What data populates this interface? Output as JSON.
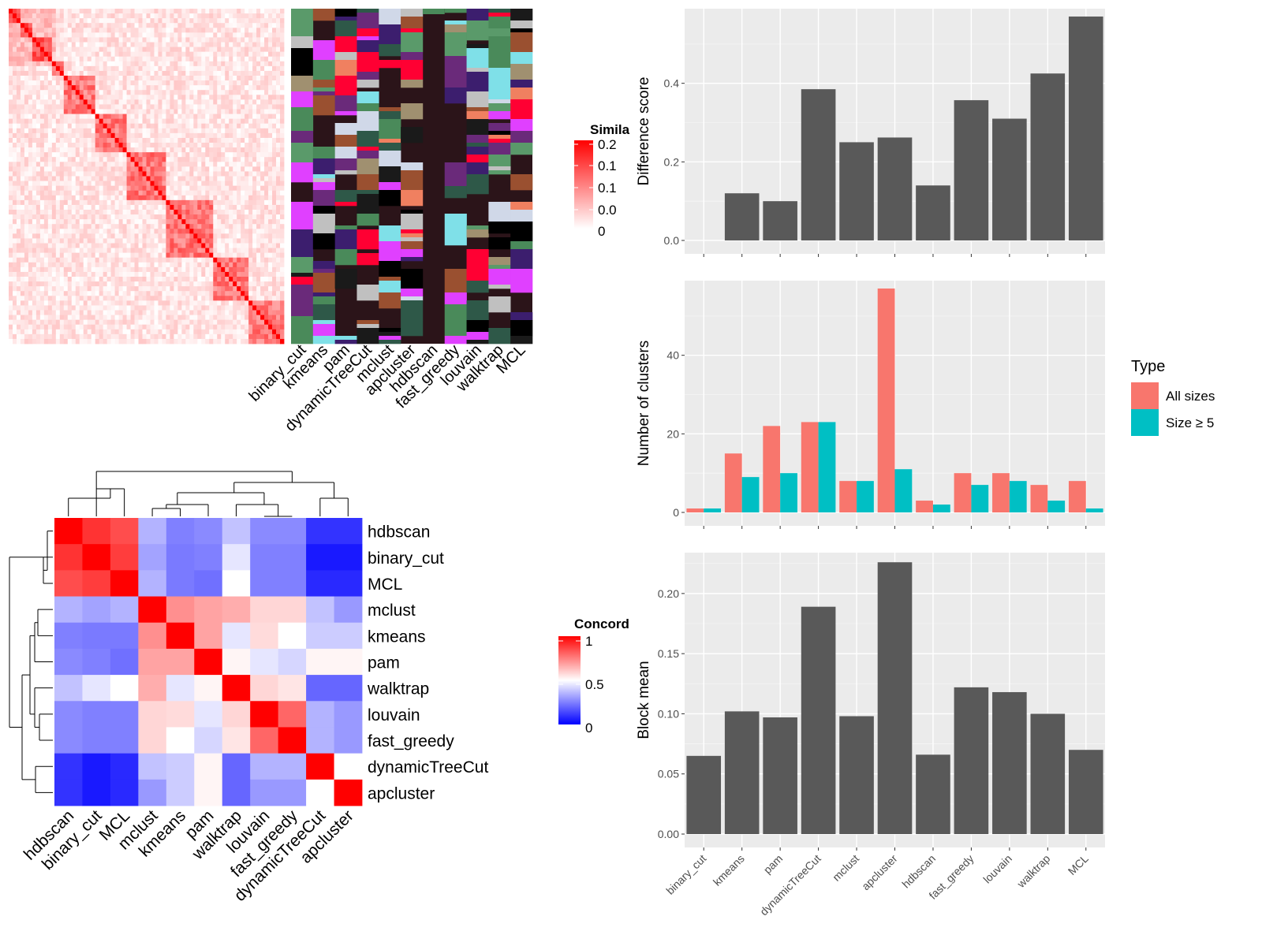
{
  "methods_order": [
    "binary_cut",
    "kmeans",
    "pam",
    "dynamicTreeCut",
    "mclust",
    "apcluster",
    "hdbscan",
    "fast_greedy",
    "louvain",
    "walktrap",
    "MCL"
  ],
  "colors": {
    "panel_bg": "#ebebeb",
    "grid": "#ffffff",
    "bar_dark": "#595959",
    "all_sizes": "#f8766d",
    "size_ge5": "#00bfc4",
    "heat_red": "#ff0000",
    "heat_blue": "#0000ff",
    "heat_white": "#ffffff",
    "cluster_bg": "#2b1419"
  },
  "similarity_heatmap": {
    "legend_title": "Simila",
    "legend_ticks": [
      "0.2",
      "0.1",
      "0.1",
      "0.0",
      "0"
    ],
    "column_labels": [
      "binary_cut",
      "kmeans",
      "pam",
      "dynamicTreeCut",
      "mclust",
      "apcluster",
      "hdbscan",
      "fast_greedy",
      "louvain",
      "walktrap",
      "MCL"
    ]
  },
  "concordance_heatmap": {
    "legend_title": "Concord",
    "legend_ticks": [
      "1",
      "0.5",
      "0"
    ],
    "row_labels": [
      "hdbscan",
      "binary_cut",
      "MCL",
      "mclust",
      "kmeans",
      "pam",
      "walktrap",
      "louvain",
      "fast_greedy",
      "dynamicTreeCut",
      "apcluster"
    ],
    "col_labels": [
      "hdbscan",
      "binary_cut",
      "MCL",
      "mclust",
      "kmeans",
      "pam",
      "walktrap",
      "louvain",
      "fast_greedy",
      "dynamicTreeCut",
      "apcluster"
    ],
    "values": [
      [
        1.0,
        0.9,
        0.85,
        0.35,
        0.25,
        0.27,
        0.38,
        0.27,
        0.27,
        0.1,
        0.1
      ],
      [
        0.9,
        1.0,
        0.88,
        0.32,
        0.24,
        0.25,
        0.45,
        0.25,
        0.25,
        0.05,
        0.05
      ],
      [
        0.85,
        0.88,
        1.0,
        0.35,
        0.24,
        0.22,
        0.5,
        0.25,
        0.25,
        0.08,
        0.08
      ],
      [
        0.35,
        0.32,
        0.35,
        1.0,
        0.72,
        0.68,
        0.66,
        0.58,
        0.58,
        0.38,
        0.3
      ],
      [
        0.25,
        0.24,
        0.24,
        0.72,
        1.0,
        0.68,
        0.45,
        0.57,
        0.5,
        0.4,
        0.4
      ],
      [
        0.27,
        0.25,
        0.22,
        0.68,
        0.68,
        1.0,
        0.52,
        0.45,
        0.42,
        0.52,
        0.52
      ],
      [
        0.38,
        0.45,
        0.5,
        0.66,
        0.45,
        0.52,
        1.0,
        0.58,
        0.55,
        0.2,
        0.2
      ],
      [
        0.27,
        0.25,
        0.25,
        0.58,
        0.57,
        0.45,
        0.58,
        1.0,
        0.8,
        0.35,
        0.3
      ],
      [
        0.27,
        0.25,
        0.25,
        0.58,
        0.5,
        0.42,
        0.55,
        0.8,
        1.0,
        0.35,
        0.3
      ],
      [
        0.1,
        0.05,
        0.08,
        0.38,
        0.4,
        0.52,
        0.2,
        0.35,
        0.35,
        1.0,
        0.5
      ],
      [
        0.1,
        0.05,
        0.08,
        0.3,
        0.4,
        0.52,
        0.2,
        0.3,
        0.3,
        0.5,
        1.0
      ]
    ]
  },
  "chart_data": [
    {
      "type": "bar",
      "categories": [
        "binary_cut",
        "kmeans",
        "pam",
        "dynamicTreeCut",
        "mclust",
        "apcluster",
        "hdbscan",
        "fast_greedy",
        "louvain",
        "walktrap",
        "MCL"
      ],
      "values": [
        0,
        0.12,
        0.1,
        0.385,
        0.25,
        0.262,
        0.14,
        0.357,
        0.31,
        0.425,
        0.57
      ],
      "xlabel": "",
      "ylabel": "Difference score",
      "ylim": [
        0,
        0.59
      ],
      "yticks": [
        "0.0",
        "0.2",
        "0.4"
      ],
      "grid": true
    },
    {
      "type": "bar",
      "categories": [
        "binary_cut",
        "kmeans",
        "pam",
        "dynamicTreeCut",
        "mclust",
        "apcluster",
        "hdbscan",
        "fast_greedy",
        "louvain",
        "walktrap",
        "MCL"
      ],
      "series": [
        {
          "name": "All sizes",
          "values": [
            1,
            15,
            22,
            23,
            8,
            57,
            3,
            10,
            10,
            7,
            8
          ]
        },
        {
          "name": "Size ≥ 5",
          "values": [
            1,
            9,
            10,
            23,
            8,
            11,
            2,
            7,
            8,
            3,
            1
          ]
        }
      ],
      "xlabel": "",
      "ylabel": "Number of clusters",
      "ylim": [
        0,
        59
      ],
      "yticks": [
        "0",
        "20",
        "40"
      ],
      "legend_title": "Type",
      "legend_position": "right",
      "grid": true
    },
    {
      "type": "bar",
      "categories": [
        "binary_cut",
        "kmeans",
        "pam",
        "dynamicTreeCut",
        "mclust",
        "apcluster",
        "hdbscan",
        "fast_greedy",
        "louvain",
        "walktrap",
        "MCL"
      ],
      "values": [
        0.065,
        0.102,
        0.097,
        0.189,
        0.098,
        0.226,
        0.066,
        0.122,
        0.118,
        0.1,
        0.07
      ],
      "xlabel": "",
      "ylabel": "Block mean",
      "ylim": [
        0,
        0.234
      ],
      "yticks": [
        "0.00",
        "0.05",
        "0.10",
        "0.15",
        "0.20"
      ],
      "grid": true
    }
  ]
}
